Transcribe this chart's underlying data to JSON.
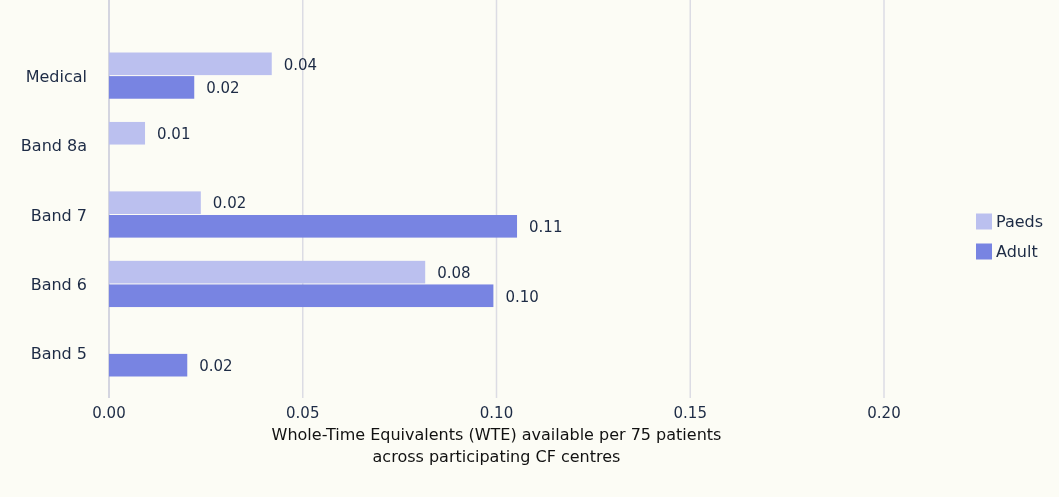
{
  "chart_data": {
    "type": "bar",
    "orientation": "horizontal",
    "xlabel": "Whole-Time Equivalents (WTE) available per 75 patients across participating CF centres",
    "categories": [
      "Medical",
      "Band 8a",
      "Band 7",
      "Band 6",
      "Band 5"
    ],
    "series": [
      {
        "name": "Paeds",
        "color": "#bbc0ef",
        "values": [
          0.042,
          0.0093,
          0.0237,
          0.0816,
          null
        ],
        "value_labels": [
          "0.04",
          "0.01",
          "0.02",
          "0.08",
          null
        ]
      },
      {
        "name": "Adult",
        "color": "#7884e2",
        "values": [
          0.022,
          null,
          0.1053,
          0.0992,
          0.0202
        ],
        "value_labels": [
          "0.02",
          null,
          "0.11",
          "0.10",
          "0.02"
        ]
      }
    ],
    "xlim": [
      0,
      0.2
    ],
    "xticks": [
      {
        "value": 0,
        "label": "0.00"
      },
      {
        "value": 0.05,
        "label": "0.05"
      },
      {
        "value": 0.1,
        "label": "0.10"
      },
      {
        "value": 0.15,
        "label": "0.15"
      },
      {
        "value": 0.2,
        "label": "0.20"
      }
    ],
    "grid": "x",
    "legend": "right"
  }
}
